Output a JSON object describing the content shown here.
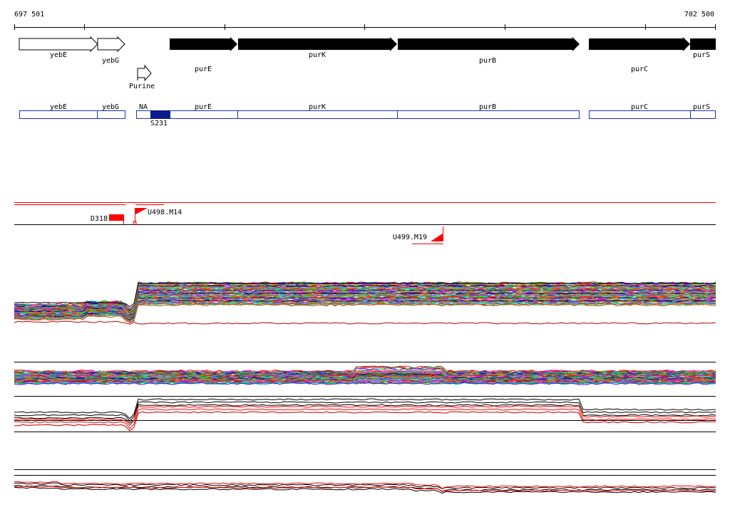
{
  "coords": {
    "start": "697 501",
    "end": "702 500"
  },
  "genes": [
    {
      "name": "yebE",
      "strand": "+",
      "style": "open"
    },
    {
      "name": "yebG",
      "strand": "+",
      "style": "open"
    },
    {
      "name": "purE",
      "strand": "+",
      "style": "filled"
    },
    {
      "name": "purK",
      "strand": "+",
      "style": "filled"
    },
    {
      "name": "purB",
      "strand": "+",
      "style": "filled"
    },
    {
      "name": "purC",
      "strand": "+",
      "style": "filled"
    },
    {
      "name": "purS",
      "strand": "+",
      "style": "filled"
    }
  ],
  "regulatory": [
    {
      "name": "Purine"
    }
  ],
  "operon_boxes": [
    {
      "label": "yebE"
    },
    {
      "label": "yebG"
    },
    {
      "label": "NA"
    },
    {
      "label": "purE"
    },
    {
      "label": "purK"
    },
    {
      "label": "purB"
    },
    {
      "label": "purC"
    },
    {
      "label": "purS"
    }
  ],
  "features": [
    {
      "label": "S231",
      "color": "#0b1a8c"
    },
    {
      "label": "D318",
      "color": "#ff0000"
    },
    {
      "label": "U498.M14",
      "color": "#ff0000"
    },
    {
      "label": "U499.M19",
      "color": "#ff0000"
    }
  ],
  "colors": {
    "gene_fill": "#000000",
    "operon_border": "#1e2fbf",
    "feature_red": "#ff0000",
    "feature_blue": "#0b1a8c"
  }
}
